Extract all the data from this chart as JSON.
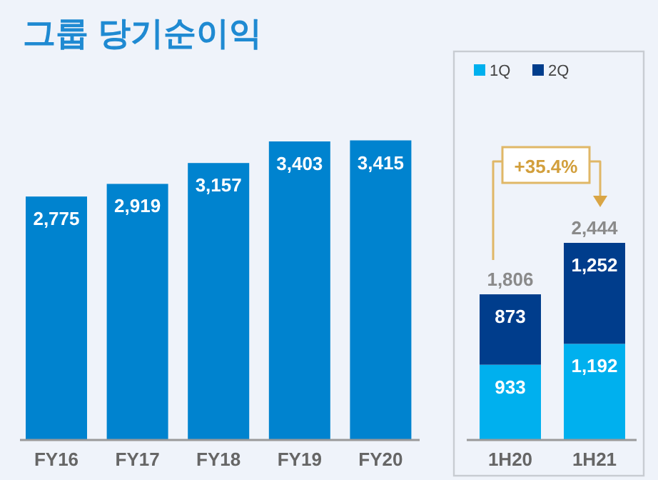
{
  "chart_data": [
    {
      "type": "bar",
      "title": "그룹 당기순이익",
      "categories": [
        "FY16",
        "FY17",
        "FY18",
        "FY19",
        "FY20"
      ],
      "values": [
        2775,
        2919,
        3157,
        3403,
        3415
      ],
      "value_labels": [
        "2,775",
        "2,919",
        "3,157",
        "3,403",
        "3,415"
      ],
      "color": "#0083cf"
    },
    {
      "type": "bar",
      "stacked": true,
      "categories": [
        "1H20",
        "1H21"
      ],
      "series": [
        {
          "name": "1Q",
          "color": "#00b0ee",
          "values": [
            933,
            1192
          ],
          "value_labels": [
            "933",
            "1,192"
          ]
        },
        {
          "name": "2Q",
          "color": "#003d8c",
          "values": [
            873,
            1252
          ],
          "value_labels": [
            "873",
            "1,252"
          ]
        }
      ],
      "totals": [
        "1,806",
        "2,444"
      ],
      "legend": "top left",
      "annotations": [
        "+35.4%"
      ]
    }
  ]
}
